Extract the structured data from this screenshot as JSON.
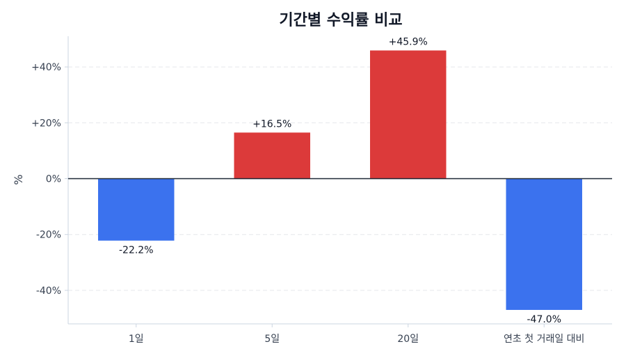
{
  "chart_data": {
    "type": "bar",
    "title": "기간별 수익률 비교",
    "ylabel": "%",
    "categories": [
      "1일",
      "5일",
      "20일",
      "연초 첫 거래일 대비"
    ],
    "values": [
      -22.2,
      16.5,
      45.9,
      -47.0
    ],
    "value_labels": [
      "-22.2%",
      "+16.5%",
      "+45.9%",
      "-47.0%"
    ],
    "ylim": [
      -52,
      51
    ],
    "yticks": [
      -40,
      -20,
      0,
      20,
      40
    ],
    "ytick_labels": [
      "-40%",
      "-20%",
      "0%",
      "+20%",
      "+40%"
    ],
    "grid": true,
    "colors": {
      "positive": "#dc3a3a",
      "negative": "#3b72ee",
      "zero_line": "#1f2937"
    }
  }
}
